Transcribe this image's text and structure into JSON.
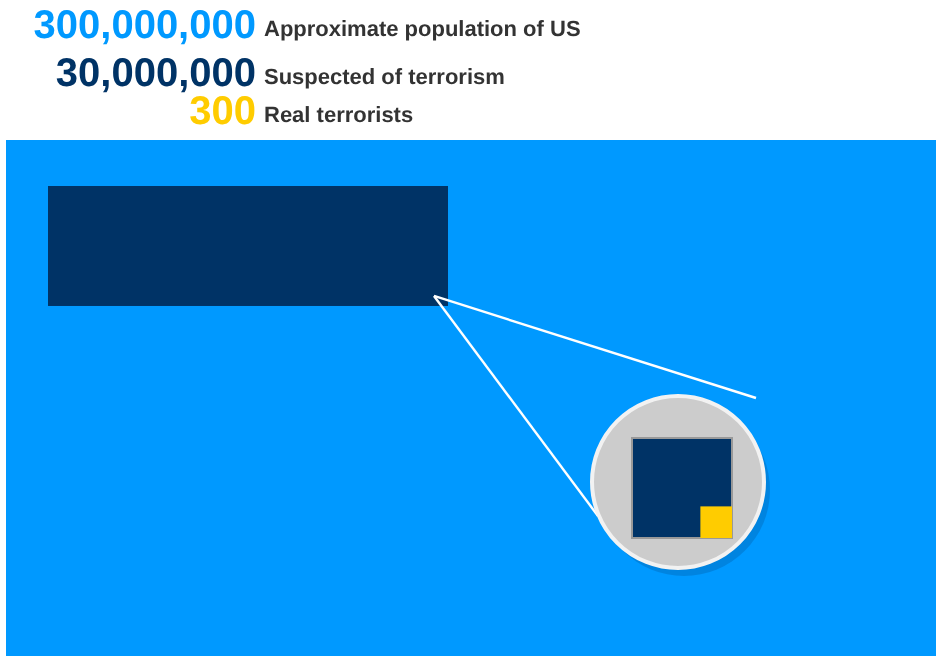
{
  "chart_data": {
    "type": "other",
    "categories": [
      "Approximate population of US",
      "Suspected of terrorism",
      "Real terrorists"
    ],
    "values": [
      300000000,
      30000000,
      300
    ],
    "value_labels": [
      "300,000,000",
      "30,000,000",
      "300"
    ],
    "colors": [
      "#0099ff",
      "#003366",
      "#ffcc00"
    ]
  }
}
